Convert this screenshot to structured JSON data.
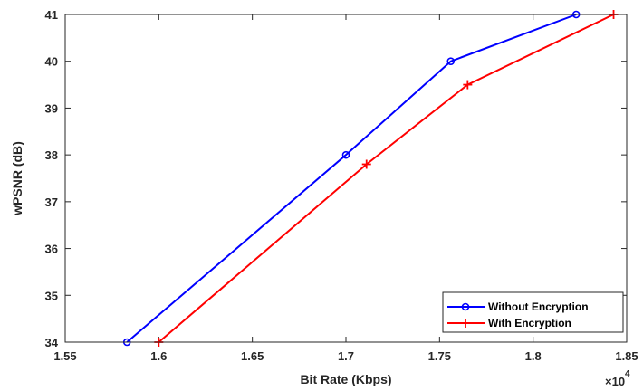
{
  "chart_data": {
    "type": "line",
    "xlabel": "Bit Rate (Kbps)",
    "ylabel": "wPSNR (dB)",
    "x_multiplier_label": "×10",
    "x_multiplier_exponent": "4",
    "xlim": [
      1.55,
      1.85
    ],
    "ylim": [
      34,
      41
    ],
    "x_ticks": [
      1.55,
      1.6,
      1.65,
      1.7,
      1.75,
      1.8,
      1.85
    ],
    "x_tick_labels": [
      "1.55",
      "1.6",
      "1.65",
      "1.7",
      "1.75",
      "1.8",
      "1.85"
    ],
    "y_ticks": [
      34,
      35,
      36,
      37,
      38,
      39,
      40,
      41
    ],
    "y_tick_labels": [
      "34",
      "35",
      "36",
      "37",
      "38",
      "39",
      "40",
      "41"
    ],
    "grid": false,
    "legend_position": "bottom-right",
    "series": [
      {
        "name": "Without Encryption",
        "color": "#0000ff",
        "marker": "circle",
        "x": [
          1.583,
          1.7,
          1.756,
          1.823
        ],
        "y": [
          34.0,
          38.0,
          40.0,
          41.0
        ]
      },
      {
        "name": "With Encryption",
        "color": "#ff0000",
        "marker": "plus",
        "x": [
          1.6,
          1.711,
          1.765,
          1.843
        ],
        "y": [
          34.0,
          37.8,
          39.5,
          41.0
        ]
      }
    ]
  }
}
